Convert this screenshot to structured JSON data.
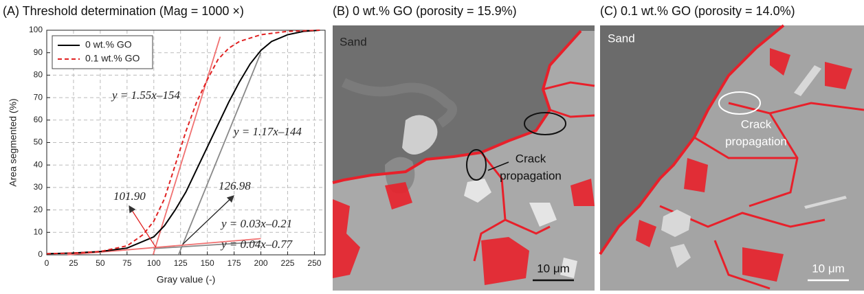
{
  "chart_data": {
    "type": "line",
    "title": "(A) Threshold determination (Mag = 1000 ×)",
    "x_label": "Gray value (-)",
    "y_label": "Area segmented (%)",
    "xlim": [
      0,
      260
    ],
    "ylim": [
      0,
      100
    ],
    "xticks": [
      0,
      25,
      50,
      75,
      100,
      125,
      150,
      175,
      200,
      225,
      250
    ],
    "yticks": [
      0,
      10,
      20,
      30,
      40,
      50,
      60,
      70,
      80,
      90,
      100
    ],
    "grid": true,
    "legend": "top-left",
    "series": [
      {
        "name": "0 wt.% GO",
        "color": "#000000",
        "dash": "solid",
        "x": [
          0,
          25,
          50,
          75,
          100,
          110,
          120,
          130,
          140,
          150,
          160,
          170,
          180,
          190,
          200,
          210,
          225,
          240,
          255
        ],
        "values": [
          0.5,
          0.8,
          1.5,
          3,
          8,
          13,
          20,
          28,
          38,
          48,
          58,
          68,
          77,
          85,
          91,
          95,
          98,
          99.5,
          100
        ]
      },
      {
        "name": "0.1 wt.% GO",
        "color": "#e02020",
        "dash": "dashed",
        "x": [
          0,
          25,
          50,
          75,
          90,
          100,
          110,
          120,
          130,
          140,
          150,
          160,
          170,
          180,
          200,
          225,
          255
        ],
        "values": [
          0.5,
          0.8,
          1.5,
          4,
          9,
          15,
          25,
          40,
          55,
          68,
          78,
          87,
          92,
          95,
          98,
          99.5,
          100
        ]
      }
    ],
    "fit_lines": [
      {
        "label": "y = 1.55x–154",
        "color": "#f07070",
        "x": [
          99.4,
          162
        ],
        "values": [
          0.07,
          97.1
        ]
      },
      {
        "label": "y = 1.17x–144",
        "color": "#888888",
        "x": [
          123.1,
          200
        ],
        "values": [
          0.03,
          90
        ]
      },
      {
        "label": "y = 0.03x–0.21",
        "color": "#888888",
        "x": [
          100,
          200
        ],
        "values": [
          2.79,
          5.79
        ]
      },
      {
        "label": "y = 0.04x–0.77",
        "color": "#f07070",
        "x": [
          19.25,
          200
        ],
        "values": [
          0,
          7.23
        ]
      }
    ],
    "annotations": [
      {
        "text": "101.90",
        "x": 101.9,
        "y": 3.3
      },
      {
        "text": "126.98",
        "x": 126.98,
        "y": 4.7
      }
    ]
  },
  "images": [
    {
      "title": "(B) 0 wt.% GO (porosity = 15.9%)",
      "region": "Sand",
      "note": [
        "Crack",
        "propagation"
      ],
      "scale_bar": "10 μm"
    },
    {
      "title": "(C) 0.1 wt.% GO (porosity = 14.0%)",
      "region": "Sand",
      "note": [
        "Crack",
        "propagation"
      ],
      "scale_bar": "10 μm"
    }
  ]
}
